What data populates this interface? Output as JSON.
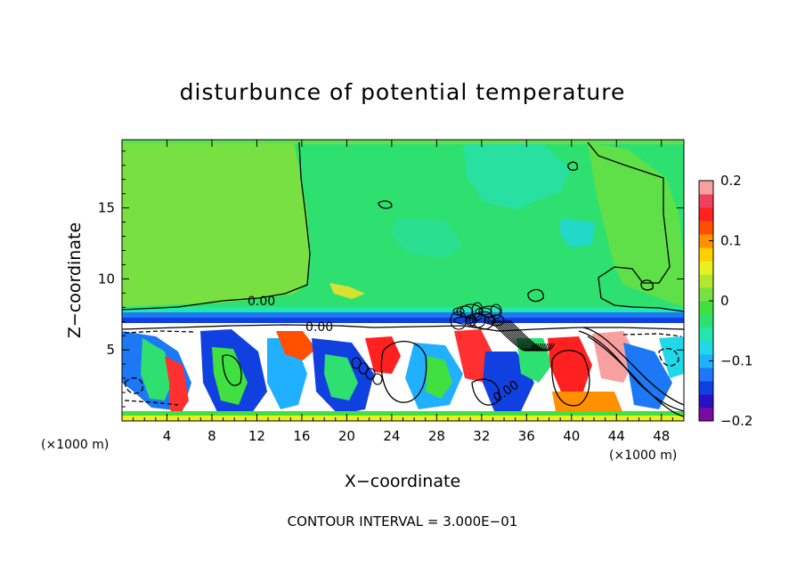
{
  "chart_data": {
    "type": "heatmap",
    "title": "disturbunce of potential temperature",
    "xlabel": "X−coordinate",
    "ylabel": "Z−coordinate",
    "x_unit_left": "(×1000 m)",
    "x_unit_right": "(×1000 m)",
    "x_ticks": [
      4,
      8,
      12,
      16,
      20,
      24,
      28,
      32,
      36,
      40,
      44,
      48
    ],
    "x_tick_labels": [
      "4",
      "8",
      "12",
      "16",
      "20",
      "24",
      "28",
      "32",
      "36",
      "40",
      "44",
      "48"
    ],
    "xlim": [
      0,
      50
    ],
    "y_ticks": [
      5,
      10,
      15
    ],
    "y_tick_labels": [
      "5",
      "10",
      "15"
    ],
    "ylim": [
      0,
      19.8
    ],
    "colorbar": {
      "range": [
        -0.2,
        0.2
      ],
      "ticks": [
        0.2,
        0.1,
        0,
        -0.1,
        -0.2
      ],
      "tick_labels": [
        "0.2",
        "0.1",
        "0",
        "−0.1",
        "−0.2"
      ],
      "colors": [
        "#7a0ba0",
        "#2a10c0",
        "#1040e0",
        "#1c78f5",
        "#20b0ff",
        "#20d8e8",
        "#22e6b0",
        "#2ee070",
        "#40e040",
        "#78e040",
        "#b0e830",
        "#e8f020",
        "#ffd000",
        "#ff9000",
        "#ff5000",
        "#ff2020",
        "#f04060",
        "#f8a0a0"
      ]
    },
    "contour_labels": [
      "0.00",
      "0.00",
      "0.00"
    ],
    "contour_interval_text": "CONTOUR INTERVAL = 3.000E−01",
    "grid": false
  }
}
